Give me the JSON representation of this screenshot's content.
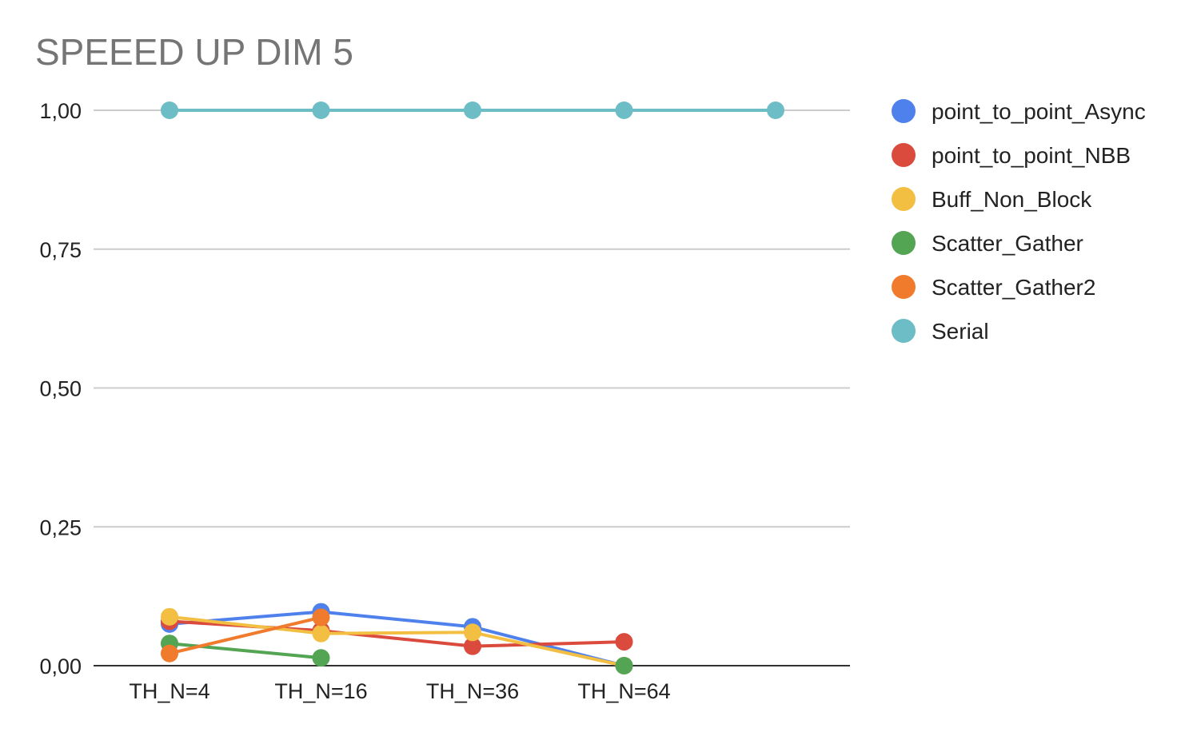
{
  "chart_data": {
    "type": "line",
    "title": "SPEEED UP DIM 5",
    "xlabel": "",
    "ylabel": "",
    "categories": [
      "TH_N=4",
      "TH_N=16",
      "TH_N=36",
      "TH_N=64",
      ""
    ],
    "ylim": [
      0,
      1
    ],
    "yticks": [
      {
        "value": 0,
        "label": "0,00"
      },
      {
        "value": 0.25,
        "label": "0,25"
      },
      {
        "value": 0.5,
        "label": "0,50"
      },
      {
        "value": 0.75,
        "label": "0,75"
      },
      {
        "value": 1,
        "label": "1,00"
      }
    ],
    "grid": true,
    "legend_position": "right",
    "series": [
      {
        "name": "point_to_point_Async",
        "color": "#4f81ed",
        "values": [
          0.075,
          0.097,
          0.07,
          0.0,
          null
        ]
      },
      {
        "name": "point_to_point_NBB",
        "color": "#db4b3d",
        "values": [
          0.08,
          0.063,
          0.035,
          0.043,
          null
        ]
      },
      {
        "name": "Buff_Non_Block",
        "color": "#f2bf42",
        "values": [
          0.088,
          0.058,
          0.06,
          0.0,
          null
        ]
      },
      {
        "name": "Scatter_Gather",
        "color": "#53a553",
        "values": [
          0.04,
          0.014,
          null,
          0.0,
          null
        ]
      },
      {
        "name": "Scatter_Gather2",
        "color": "#f07b2d",
        "values": [
          0.022,
          0.087,
          null,
          null,
          null
        ]
      },
      {
        "name": "Serial",
        "color": "#6cbdc5",
        "values": [
          1.0,
          1.0,
          1.0,
          1.0,
          1.0
        ]
      }
    ]
  }
}
